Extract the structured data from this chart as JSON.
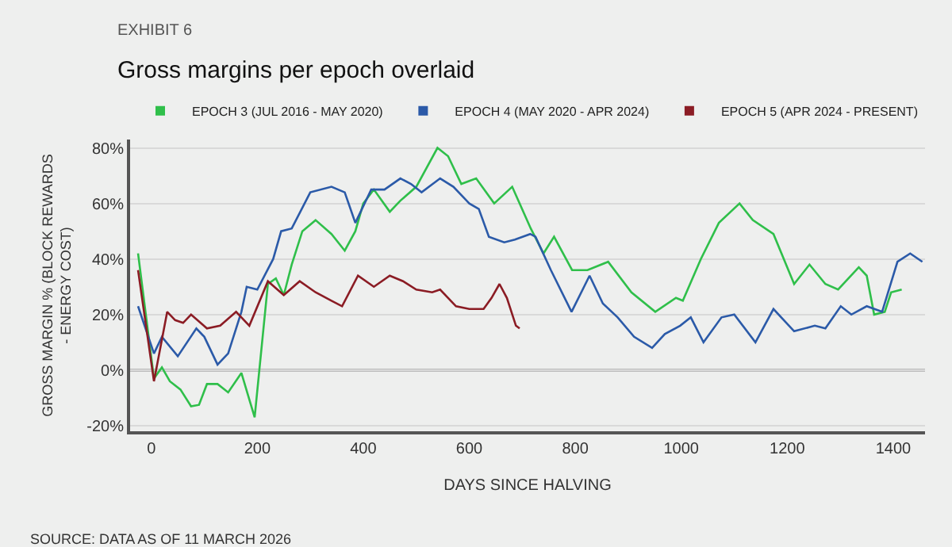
{
  "chart_data": {
    "type": "line",
    "title": "Gross margins per epoch overlaid",
    "subtitle": "EXHIBIT 6",
    "xlabel": "DAYS SINCE HALVING",
    "ylabel": "GROSS MARGIN % (BLOCK REWARDS\n- ENERGY COST)",
    "annotations": [
      "SOURCE: DATA AS OF 11 MARCH 2026"
    ],
    "xlim": [
      -40,
      1460
    ],
    "xticks": [
      0,
      200,
      400,
      600,
      800,
      1000,
      1200,
      1400
    ],
    "ylim": [
      -22,
      83
    ],
    "yticks": [
      {
        "value": -20,
        "label": "-20%"
      },
      {
        "value": 0,
        "label": "0%"
      },
      {
        "value": 20,
        "label": "20%"
      },
      {
        "value": 40,
        "label": "40%"
      },
      {
        "value": 60,
        "label": "60%"
      },
      {
        "value": 80,
        "label": "80%"
      }
    ],
    "grid": "y",
    "legend": "top",
    "line_style": "solid",
    "ref_lines": [
      {
        "axis": "y",
        "value": 0,
        "color": "#8a8a8a"
      }
    ],
    "series": [
      {
        "name": "EPOCH 3 (JUL 2016 - MAY 2020)",
        "color": "#2fbf4a",
        "x": [
          -25,
          5,
          20,
          35,
          55,
          75,
          90,
          105,
          125,
          145,
          170,
          195,
          220,
          235,
          250,
          265,
          285,
          310,
          340,
          365,
          385,
          400,
          420,
          450,
          470,
          500,
          540,
          560,
          585,
          613,
          647,
          681,
          716,
          740,
          760,
          794,
          823,
          862,
          906,
          951,
          990,
          1003,
          1037,
          1071,
          1110,
          1135,
          1174,
          1213,
          1242,
          1272,
          1296,
          1335,
          1350,
          1364,
          1384,
          1396,
          1416
        ],
        "values": [
          42,
          -3,
          1,
          -4,
          -7,
          -13,
          -12.5,
          -5,
          -5,
          -8,
          -1,
          -17,
          31,
          33,
          27,
          38,
          50,
          54,
          49,
          43,
          50,
          60,
          65,
          57,
          61,
          66,
          80,
          77,
          67,
          69,
          60,
          66,
          51,
          42,
          48,
          36,
          36,
          39,
          28,
          21,
          26,
          25,
          40,
          53,
          60,
          54,
          49,
          31,
          38,
          31,
          29,
          37,
          34,
          20,
          21,
          28,
          29
        ]
      },
      {
        "name": "EPOCH 4 (MAY 2020 - APR 2024)",
        "color": "#2b5aa8",
        "x": [
          -25,
          5,
          20,
          50,
          85,
          100,
          125,
          145,
          170,
          180,
          200,
          230,
          245,
          265,
          300,
          340,
          365,
          385,
          415,
          440,
          470,
          490,
          510,
          545,
          570,
          600,
          618,
          637,
          666,
          686,
          715,
          725,
          754,
          793,
          827,
          852,
          880,
          911,
          945,
          969,
          998,
          1018,
          1042,
          1076,
          1100,
          1140,
          1174,
          1213,
          1252,
          1272,
          1301,
          1321,
          1350,
          1379,
          1408,
          1432,
          1455
        ],
        "values": [
          23,
          6,
          12,
          5,
          15,
          12,
          2,
          6,
          21,
          30,
          29,
          40,
          50,
          51,
          64,
          66,
          64,
          53,
          65,
          65,
          69,
          67,
          64,
          69,
          66,
          60,
          58,
          48,
          46,
          47,
          49,
          48,
          36,
          21,
          34,
          24,
          19,
          12,
          8,
          13,
          16,
          19,
          10,
          19,
          20,
          10,
          22,
          14,
          16,
          15,
          23,
          20,
          23,
          21,
          39,
          42,
          39
        ]
      },
      {
        "name": "EPOCH 5 (APR 2024 - PRESENT)",
        "color": "#8b1c24",
        "x": [
          -25,
          5,
          30,
          45,
          60,
          75,
          105,
          130,
          160,
          185,
          220,
          250,
          280,
          310,
          340,
          360,
          390,
          420,
          450,
          475,
          500,
          530,
          545,
          575,
          600,
          627,
          642,
          657,
          671,
          688,
          695
        ],
        "values": [
          36,
          -4,
          21,
          18,
          17,
          20,
          15,
          16,
          21,
          16,
          32,
          27,
          32,
          28,
          25,
          23,
          34,
          30,
          34,
          32,
          29,
          28,
          29,
          23,
          22,
          22,
          26,
          31,
          26,
          16,
          15
        ]
      }
    ]
  }
}
